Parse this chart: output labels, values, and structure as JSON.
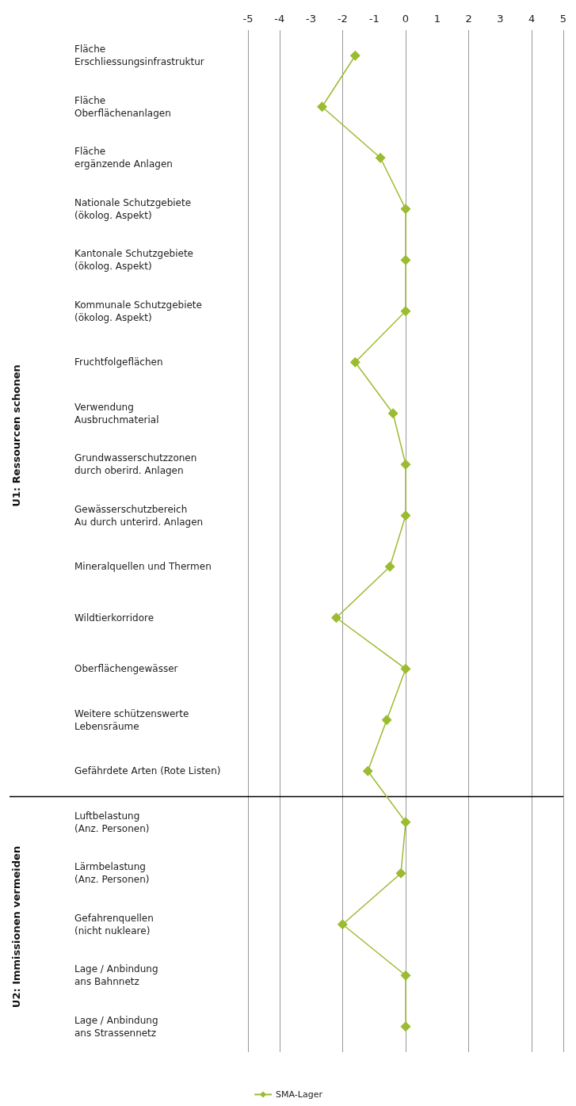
{
  "chart_data": {
    "type": "line",
    "orientation": "horizontal",
    "categories": [
      "Fläche\nErschliessungsinfrastruktur",
      "Fläche\nOberflächenanlagen",
      "Fläche\nergänzende Anlagen",
      "Nationale Schutzgebiete\n(ökolog. Aspekt)",
      "Kantonale Schutzgebiete\n(ökolog. Aspekt)",
      "Kommunale Schutzgebiete\n(ökolog. Aspekt)",
      "Fruchtfolgeflächen",
      "Verwendung\nAusbruchmaterial",
      "Grundwasserschutzzonen\ndurch oberird. Anlagen",
      "Gewässerschutzbereich\nAu durch unterird. Anlagen",
      "Mineralquellen und Thermen",
      "Wildtierkorridore",
      "Oberflächengewässer",
      "Weitere schützenswerte\nLebensräume",
      "Gefährdete Arten (Rote Listen)",
      "Luftbelastung\n(Anz. Personen)",
      "Lärmbelastung\n(Anz. Personen)",
      "Gefahrenquellen\n(nicht nukleare)",
      "Lage / Anbindung\nans Bahnnetz",
      "Lage / Anbindung\nans Strassennetz"
    ],
    "series": [
      {
        "name": "SMA-Lager",
        "color": "#9bbb30",
        "values": [
          -1.6,
          -2.65,
          -0.8,
          0,
          0,
          0,
          -1.6,
          -0.4,
          0,
          0,
          -0.5,
          -2.2,
          0,
          -0.6,
          -1.2,
          0,
          -0.15,
          -2.0,
          0,
          0
        ]
      }
    ],
    "xlim": [
      -5,
      5
    ],
    "xticks": [
      -5,
      -4,
      -3,
      -2,
      -1,
      0,
      1,
      2,
      3,
      4,
      5
    ],
    "annotations": [
      "U1: Ressourcen schonen",
      "U2: Immissionen vermeiden"
    ],
    "ref_lines": [
      {
        "axis": "y",
        "value": "Luftbelastung\n(Anz. Personen)",
        "color": "#000000"
      }
    ],
    "grid": "x",
    "legend": "bottom",
    "marker": "diamond",
    "line_style": "solid"
  }
}
